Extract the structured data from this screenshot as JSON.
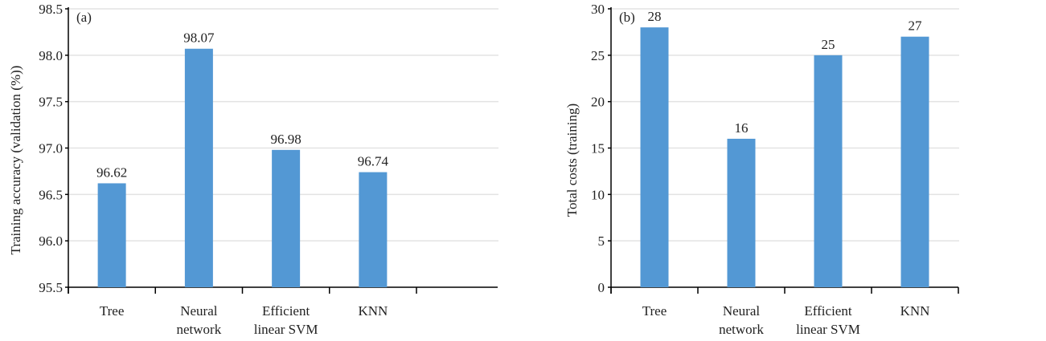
{
  "chart_data": [
    {
      "type": "bar",
      "panel_label": "(a)",
      "categories": [
        [
          "Tree"
        ],
        [
          "Neural",
          "network"
        ],
        [
          "Efficient",
          "linear SVM"
        ],
        [
          "KNN"
        ]
      ],
      "values": [
        96.62,
        98.07,
        96.98,
        96.74
      ],
      "data_labels": [
        "96.62",
        "98.07",
        "96.98",
        "96.74"
      ],
      "xlabel": "",
      "ylabel": "Training accuracy (validation (%))",
      "ylim": [
        95.5,
        98.5
      ],
      "yticks": [
        "95.5",
        "96.0",
        "96.5",
        "97.0",
        "97.5",
        "98.0",
        "98.5"
      ],
      "grid": true,
      "bar_color": "#5398d4"
    },
    {
      "type": "bar",
      "panel_label": "(b)",
      "categories": [
        [
          "Tree"
        ],
        [
          "Neural",
          "network"
        ],
        [
          "Efficient",
          "linear SVM"
        ],
        [
          "KNN"
        ]
      ],
      "values": [
        28,
        16,
        25,
        27
      ],
      "data_labels": [
        "28",
        "16",
        "25",
        "27"
      ],
      "xlabel": "",
      "ylabel": "Total costs (training)",
      "ylim": [
        0,
        30
      ],
      "yticks": [
        "0",
        "5",
        "10",
        "15",
        "20",
        "25",
        "30"
      ],
      "grid": true,
      "bar_color": "#5398d4"
    }
  ]
}
